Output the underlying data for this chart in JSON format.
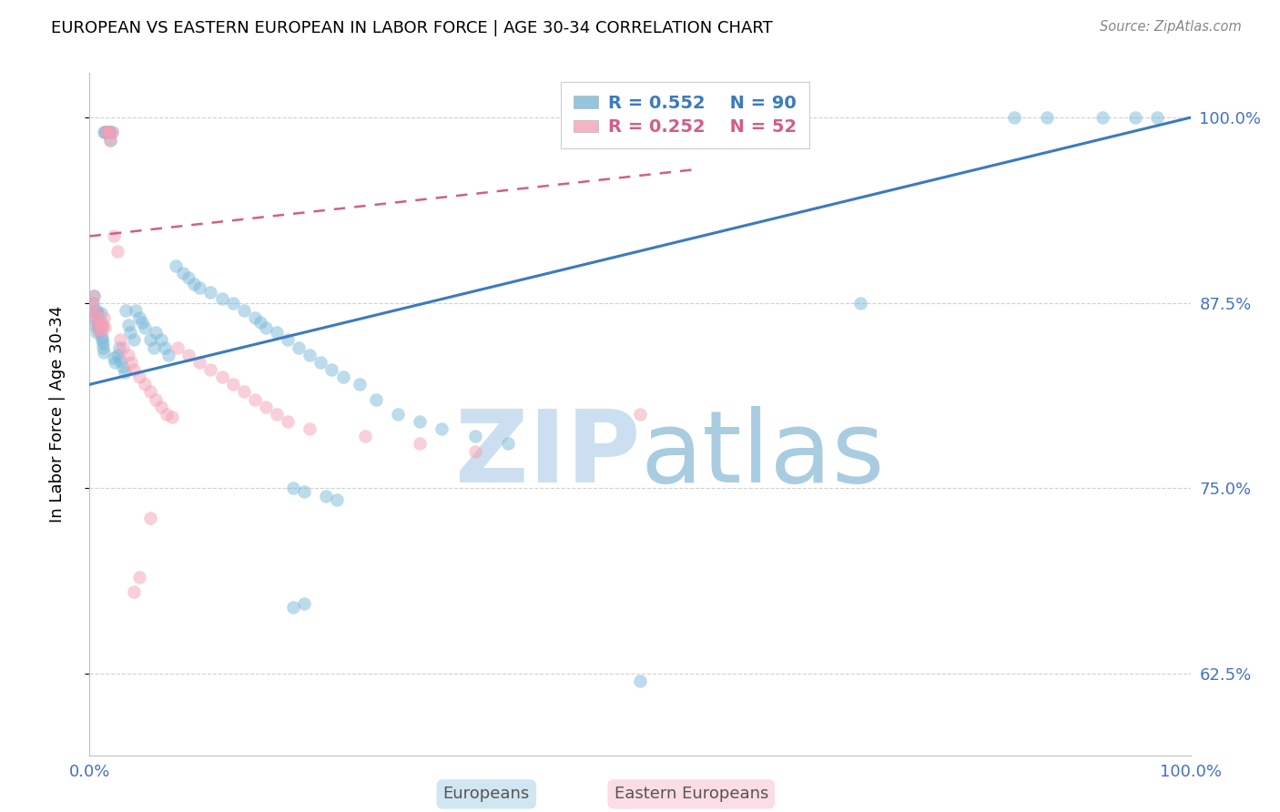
{
  "title": "EUROPEAN VS EASTERN EUROPEAN IN LABOR FORCE | AGE 30-34 CORRELATION CHART",
  "source": "Source: ZipAtlas.com",
  "ylabel": "In Labor Force | Age 30-34",
  "xlim": [
    0.0,
    1.0
  ],
  "ylim": [
    0.57,
    1.03
  ],
  "yticks": [
    0.625,
    0.75,
    0.875,
    1.0
  ],
  "ytick_labels": [
    "62.5%",
    "75.0%",
    "87.5%",
    "100.0%"
  ],
  "xtick_vals": [
    0.0,
    0.1,
    0.2,
    0.3,
    0.4,
    0.5,
    0.6,
    0.7,
    0.8,
    0.9,
    1.0
  ],
  "xtick_labels": [
    "0.0%",
    "",
    "",
    "",
    "",
    "",
    "",
    "",
    "",
    "",
    "100.0%"
  ],
  "blue_R": 0.552,
  "blue_N": 90,
  "pink_R": 0.252,
  "pink_N": 52,
  "blue_color": "#7ab8d9",
  "pink_color": "#f4a0b5",
  "blue_line_color": "#3a7bbf",
  "pink_line_color": "#d45c8a",
  "axis_label_color": "#4472C4",
  "grid_color": "#d0d0d0",
  "title_color": "#000000",
  "source_color": "#888888",
  "watermark_zip_color": "#ccdff0",
  "watermark_atlas_color": "#aacce0",
  "blue_x": [
    0.002,
    0.003,
    0.004,
    0.005,
    0.005,
    0.006,
    0.006,
    0.007,
    0.007,
    0.008,
    0.008,
    0.009,
    0.009,
    0.01,
    0.01,
    0.011,
    0.011,
    0.012,
    0.012,
    0.013,
    0.013,
    0.014,
    0.015,
    0.015,
    0.016,
    0.017,
    0.018,
    0.018,
    0.019,
    0.02,
    0.022,
    0.023,
    0.025,
    0.027,
    0.028,
    0.03,
    0.032,
    0.033,
    0.035,
    0.037,
    0.04,
    0.042,
    0.045,
    0.048,
    0.05,
    0.055,
    0.058,
    0.06,
    0.065,
    0.068,
    0.072,
    0.078,
    0.085,
    0.09,
    0.095,
    0.1,
    0.11,
    0.12,
    0.13,
    0.14,
    0.15,
    0.155,
    0.16,
    0.17,
    0.18,
    0.19,
    0.2,
    0.21,
    0.22,
    0.23,
    0.245,
    0.26,
    0.28,
    0.3,
    0.32,
    0.35,
    0.38,
    0.5,
    0.7,
    0.84,
    0.87,
    0.92,
    0.95,
    0.97,
    0.185,
    0.195,
    0.215,
    0.225,
    0.185,
    0.195
  ],
  "blue_y": [
    0.87,
    0.875,
    0.88,
    0.865,
    0.86,
    0.87,
    0.855,
    0.86,
    0.868,
    0.862,
    0.858,
    0.856,
    0.862,
    0.868,
    0.858,
    0.85,
    0.852,
    0.848,
    0.845,
    0.842,
    0.99,
    0.99,
    0.99,
    0.99,
    0.99,
    0.99,
    0.99,
    0.99,
    0.985,
    0.99,
    0.838,
    0.835,
    0.84,
    0.845,
    0.836,
    0.832,
    0.828,
    0.87,
    0.86,
    0.855,
    0.85,
    0.87,
    0.865,
    0.862,
    0.858,
    0.85,
    0.845,
    0.855,
    0.85,
    0.845,
    0.84,
    0.9,
    0.895,
    0.892,
    0.888,
    0.885,
    0.882,
    0.878,
    0.875,
    0.87,
    0.865,
    0.862,
    0.858,
    0.855,
    0.85,
    0.845,
    0.84,
    0.835,
    0.83,
    0.825,
    0.82,
    0.81,
    0.8,
    0.795,
    0.79,
    0.785,
    0.78,
    0.62,
    0.875,
    1.0,
    1.0,
    1.0,
    1.0,
    1.0,
    0.75,
    0.748,
    0.745,
    0.742,
    0.67,
    0.672
  ],
  "pink_x": [
    0.002,
    0.003,
    0.004,
    0.005,
    0.006,
    0.007,
    0.008,
    0.009,
    0.01,
    0.011,
    0.012,
    0.013,
    0.014,
    0.015,
    0.016,
    0.017,
    0.018,
    0.019,
    0.02,
    0.022,
    0.025,
    0.028,
    0.03,
    0.035,
    0.038,
    0.04,
    0.045,
    0.05,
    0.055,
    0.06,
    0.065,
    0.07,
    0.075,
    0.08,
    0.09,
    0.1,
    0.11,
    0.12,
    0.13,
    0.14,
    0.15,
    0.16,
    0.17,
    0.18,
    0.2,
    0.25,
    0.3,
    0.35,
    0.5,
    0.055,
    0.04,
    0.045
  ],
  "pink_y": [
    0.87,
    0.875,
    0.88,
    0.865,
    0.868,
    0.862,
    0.858,
    0.856,
    0.862,
    0.858,
    0.86,
    0.865,
    0.858,
    0.99,
    0.99,
    0.99,
    0.99,
    0.985,
    0.99,
    0.92,
    0.91,
    0.85,
    0.845,
    0.84,
    0.835,
    0.83,
    0.825,
    0.82,
    0.815,
    0.81,
    0.805,
    0.8,
    0.798,
    0.845,
    0.84,
    0.835,
    0.83,
    0.825,
    0.82,
    0.815,
    0.81,
    0.805,
    0.8,
    0.795,
    0.79,
    0.785,
    0.78,
    0.775,
    0.8,
    0.73,
    0.68,
    0.69
  ]
}
